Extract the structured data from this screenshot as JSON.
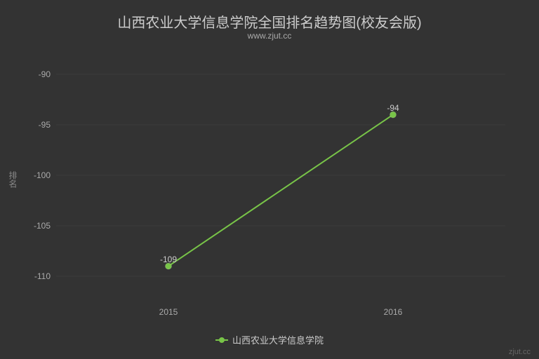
{
  "chart": {
    "type": "line",
    "title": "山西农业大学信息学院全国排名趋势图(校友会版)",
    "subtitle": "www.zjut.cc",
    "ylabel": "排名",
    "background_color": "#333333",
    "grid_color": "#3b3b3b",
    "text_color": "#cccccc",
    "tick_color": "#aaaaaa",
    "title_fontsize": 20,
    "subtitle_fontsize": 12,
    "tick_fontsize": 12,
    "x": {
      "categories": [
        "2015",
        "2016"
      ],
      "positions": [
        0.25,
        0.75
      ]
    },
    "y": {
      "min": -112.5,
      "max": -87.5,
      "ticks": [
        -90,
        -95,
        -100,
        -105,
        -110
      ]
    },
    "series": [
      {
        "name": "山西农业大学信息学院",
        "color": "#78c448",
        "line_width": 2,
        "marker_radius": 4.5,
        "points": [
          {
            "x": "2015",
            "y": -109,
            "label": "-109"
          },
          {
            "x": "2016",
            "y": -94,
            "label": "-94"
          }
        ]
      }
    ],
    "legend": {
      "label": "山西农业大学信息学院"
    },
    "credit": "zjut.cc"
  }
}
